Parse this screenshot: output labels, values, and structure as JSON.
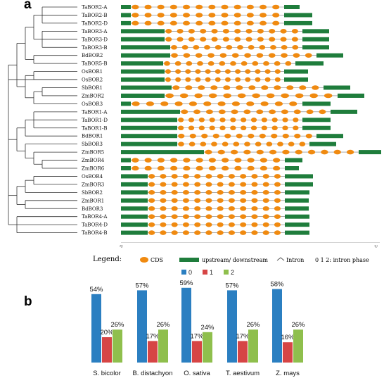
{
  "panel_a": {
    "label": "a",
    "genes": [
      "TaBOR2-A",
      "TaBOR2-B",
      "TaBOR2-D",
      "TaBOR3-A",
      "TaBOR3-D",
      "TaBOR3-B",
      "BdBOR2",
      "TaBOR5-B",
      "OsBOR1",
      "OsBOR2",
      "SbBOR1",
      "ZmBOR2",
      "OsBOR3",
      "TaBOR1-A",
      "TaBOR1-D",
      "TaBOR1-B",
      "BdBOR1",
      "SbBOR3",
      "ZmBOR5",
      "ZmBOR4",
      "ZmBOR6",
      "OsBOR4",
      "ZmBOR3",
      "SbBOR2",
      "ZmBOR1",
      "BdBOR3",
      "TaBOR4-A",
      "TaBOR4-D",
      "TaBOR4-B"
    ],
    "axis_start": "5'",
    "axis_end": "3'"
  },
  "legend": {
    "title": "Legend:",
    "cds": "CDS",
    "utr": "upstream/ downstream",
    "intron": "Intron",
    "phase": "0 1 2: intron phase",
    "colors": {
      "cds": "#f08a10",
      "utr": "#1f7d3c",
      "intron": "#555555"
    }
  },
  "panel_b": {
    "label": "b",
    "legend_labels": [
      "0",
      "1",
      "2"
    ],
    "colors": [
      "#2b7fc1",
      "#d64545",
      "#8fbf4d"
    ]
  },
  "chart_data": {
    "type": "bar",
    "categories": [
      "S. bicolor",
      "B. distachyon",
      "O. sativa",
      "T. aestivum",
      "Z. mays"
    ],
    "series": [
      {
        "name": "0",
        "values": [
          54,
          57,
          59,
          57,
          58
        ],
        "labels": [
          "54%",
          "57%",
          "59%",
          "57%",
          "58%"
        ]
      },
      {
        "name": "1",
        "values": [
          20,
          17,
          17,
          17,
          16
        ],
        "labels": [
          "20%",
          "17%",
          "17%",
          "17%",
          "16%"
        ]
      },
      {
        "name": "2",
        "values": [
          26,
          26,
          24,
          26,
          26
        ],
        "labels": [
          "26%",
          "26%",
          "24%",
          "26%",
          "26%"
        ]
      }
    ],
    "ylim": [
      0,
      60
    ],
    "grid": false,
    "legend_position": "top"
  }
}
